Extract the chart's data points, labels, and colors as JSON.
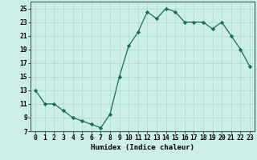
{
  "x": [
    0,
    1,
    2,
    3,
    4,
    5,
    6,
    7,
    8,
    9,
    10,
    11,
    12,
    13,
    14,
    15,
    16,
    17,
    18,
    19,
    20,
    21,
    22,
    23
  ],
  "y": [
    13,
    11,
    11,
    10,
    9,
    8.5,
    8,
    7.5,
    9.5,
    15,
    19.5,
    21.5,
    24.5,
    23.5,
    25,
    24.5,
    23,
    23,
    23,
    22,
    23,
    21,
    19,
    16.5
  ],
  "line_color": "#1a6b5a",
  "marker": "D",
  "marker_size": 2.2,
  "bg_color": "#cceee8",
  "grid_color": "#b0d8cc",
  "xlabel": "Humidex (Indice chaleur)",
  "xlim": [
    -0.5,
    23.5
  ],
  "ylim": [
    7,
    26
  ],
  "yticks": [
    7,
    9,
    11,
    13,
    15,
    17,
    19,
    21,
    23,
    25
  ],
  "xticks": [
    0,
    1,
    2,
    3,
    4,
    5,
    6,
    7,
    8,
    9,
    10,
    11,
    12,
    13,
    14,
    15,
    16,
    17,
    18,
    19,
    20,
    21,
    22,
    23
  ],
  "label_fontsize": 6.5,
  "tick_fontsize": 5.8
}
